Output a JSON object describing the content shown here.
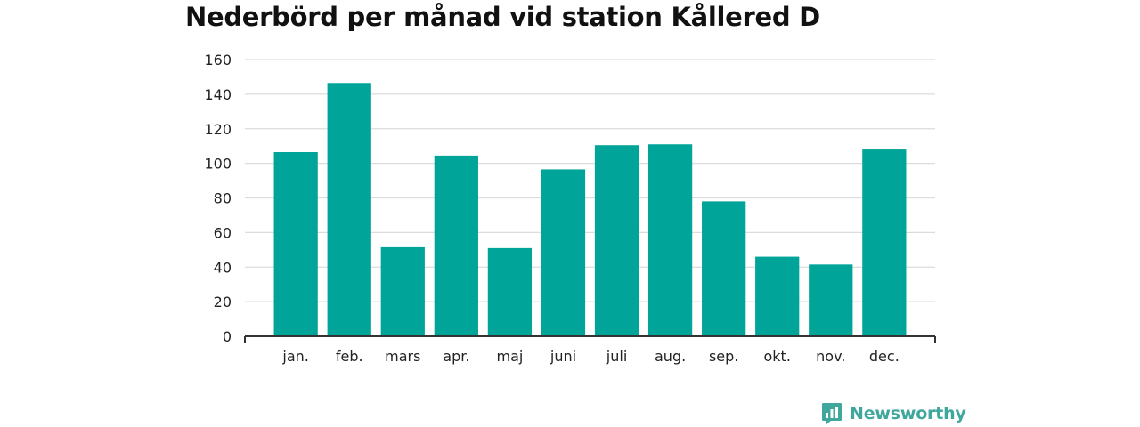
{
  "chart_data": {
    "type": "bar",
    "title": "Nederbörd per månad vid station Kållered D",
    "xlabel": "",
    "ylabel": "",
    "categories": [
      "jan.",
      "feb.",
      "mars",
      "apr.",
      "maj",
      "juni",
      "juli",
      "aug.",
      "sep.",
      "okt.",
      "nov.",
      "dec."
    ],
    "values": [
      106.5,
      146.5,
      51.5,
      104.5,
      51,
      96.5,
      110.5,
      111,
      78,
      46,
      41.5,
      108
    ],
    "ylim": [
      0,
      160
    ],
    "yticks": [
      "0",
      "20",
      "40",
      "60",
      "80",
      "100",
      "120",
      "140",
      "160"
    ],
    "grid": true,
    "bar_color": "#00a499"
  },
  "branding": {
    "name": "Newsworthy",
    "icon": "newsworthy-chart-bubble-icon",
    "color": "#3fa79c"
  }
}
